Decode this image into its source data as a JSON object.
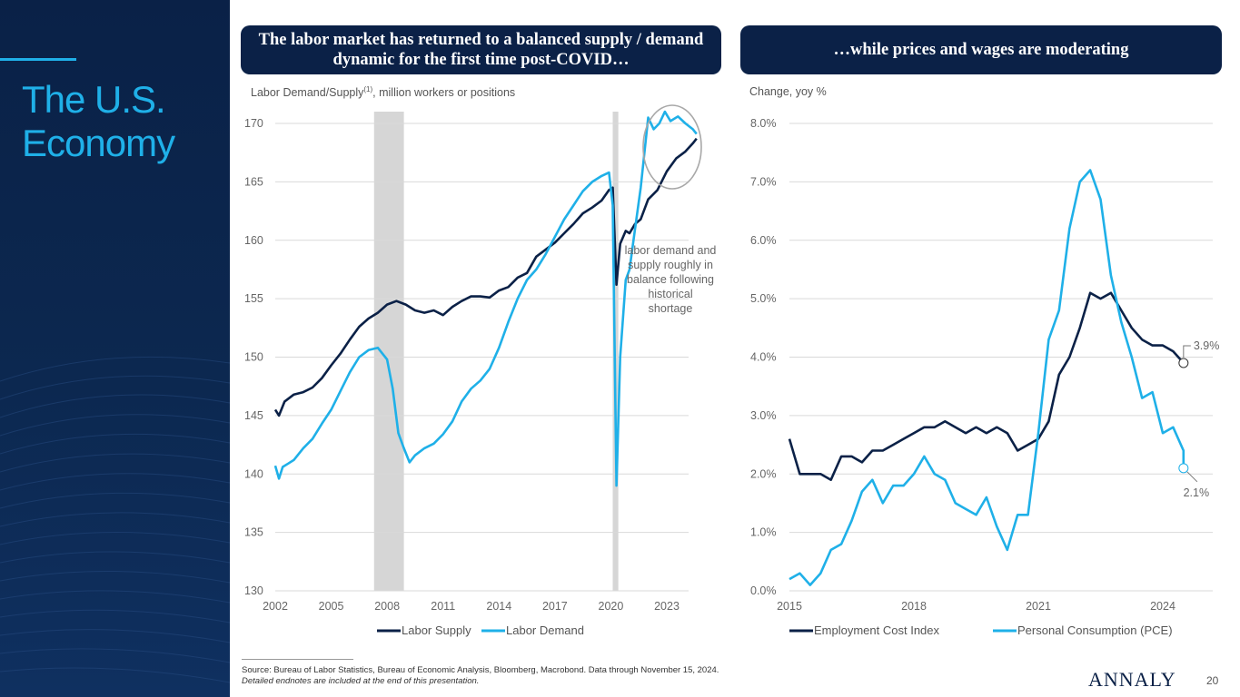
{
  "sidebar": {
    "title_line1": "The U.S.",
    "title_line2": "Economy"
  },
  "left_panel": {
    "banner": "The labor market has returned to a balanced supply / demand dynamic for the first time post-COVID…",
    "unit_label": "Labor Demand/Supply",
    "unit_sup": "(1)",
    "unit_rest": ", million workers or positions",
    "annotation": [
      "labor demand and",
      "supply roughly in",
      "balance following",
      "historical",
      "shortage"
    ]
  },
  "right_panel": {
    "banner": "…while prices and wages are moderating",
    "unit_label": "Change, yoy %"
  },
  "footer": {
    "source": "Source: Bureau of Labor Statistics, Bureau of Economic Analysis, Bloomberg, Macrobond. Data through November 15, 2024.",
    "note": "Detailed endnotes are included at the end of this presentation.",
    "logo": "ANNALY",
    "page_number": "20"
  },
  "colors": {
    "navy": "#0b2147",
    "cyan": "#1fb0e8",
    "recession": "#d6d6d6"
  },
  "chart_data": [
    {
      "type": "line",
      "ylim": [
        130,
        170
      ],
      "xlim": [
        2002,
        2024.7
      ],
      "yticks": [
        130,
        135,
        140,
        145,
        150,
        155,
        160,
        165,
        170
      ],
      "xticks": [
        "2002",
        "2005",
        "2008",
        "2011",
        "2014",
        "2017",
        "2020",
        "2023"
      ],
      "shaded_periods": [
        [
          2007.3,
          2008.9
        ],
        [
          2020.1,
          2020.4
        ]
      ],
      "series": [
        {
          "name": "Labor Supply",
          "color": "#0b2147",
          "points": [
            [
              2002.0,
              145.5
            ],
            [
              2002.2,
              145.0
            ],
            [
              2002.5,
              146.2
            ],
            [
              2003.0,
              146.8
            ],
            [
              2003.5,
              147.0
            ],
            [
              2004.0,
              147.4
            ],
            [
              2004.5,
              148.2
            ],
            [
              2005.0,
              149.3
            ],
            [
              2005.5,
              150.3
            ],
            [
              2006.0,
              151.5
            ],
            [
              2006.5,
              152.6
            ],
            [
              2007.0,
              153.3
            ],
            [
              2007.5,
              153.8
            ],
            [
              2008.0,
              154.5
            ],
            [
              2008.5,
              154.8
            ],
            [
              2009.0,
              154.5
            ],
            [
              2009.5,
              154.0
            ],
            [
              2010.0,
              153.8
            ],
            [
              2010.5,
              154.0
            ],
            [
              2011.0,
              153.6
            ],
            [
              2011.5,
              154.3
            ],
            [
              2012.0,
              154.8
            ],
            [
              2012.5,
              155.2
            ],
            [
              2013.0,
              155.2
            ],
            [
              2013.5,
              155.1
            ],
            [
              2014.0,
              155.7
            ],
            [
              2014.5,
              156.0
            ],
            [
              2015.0,
              156.8
            ],
            [
              2015.5,
              157.2
            ],
            [
              2016.0,
              158.6
            ],
            [
              2016.5,
              159.2
            ],
            [
              2017.0,
              159.8
            ],
            [
              2017.5,
              160.6
            ],
            [
              2018.0,
              161.4
            ],
            [
              2018.5,
              162.3
            ],
            [
              2019.0,
              162.8
            ],
            [
              2019.5,
              163.4
            ],
            [
              2019.9,
              164.3
            ],
            [
              2020.1,
              164.5
            ],
            [
              2020.3,
              156.2
            ],
            [
              2020.5,
              159.7
            ],
            [
              2020.8,
              160.8
            ],
            [
              2021.0,
              160.6
            ],
            [
              2021.3,
              161.4
            ],
            [
              2021.6,
              161.8
            ],
            [
              2022.0,
              163.5
            ],
            [
              2022.5,
              164.3
            ],
            [
              2023.0,
              165.9
            ],
            [
              2023.5,
              167.0
            ],
            [
              2024.0,
              167.6
            ],
            [
              2024.4,
              168.3
            ],
            [
              2024.6,
              168.7
            ]
          ]
        },
        {
          "name": "Labor Demand",
          "color": "#1fb0e8",
          "points": [
            [
              2002.0,
              140.7
            ],
            [
              2002.2,
              139.6
            ],
            [
              2002.4,
              140.6
            ],
            [
              2002.7,
              140.9
            ],
            [
              2003.0,
              141.2
            ],
            [
              2003.5,
              142.2
            ],
            [
              2004.0,
              143.0
            ],
            [
              2004.5,
              144.3
            ],
            [
              2005.0,
              145.5
            ],
            [
              2005.5,
              147.1
            ],
            [
              2006.0,
              148.7
            ],
            [
              2006.5,
              150.0
            ],
            [
              2007.0,
              150.6
            ],
            [
              2007.5,
              150.8
            ],
            [
              2008.0,
              149.8
            ],
            [
              2008.3,
              147.3
            ],
            [
              2008.6,
              143.5
            ],
            [
              2008.9,
              142.2
            ],
            [
              2009.2,
              141.0
            ],
            [
              2009.5,
              141.6
            ],
            [
              2010.0,
              142.2
            ],
            [
              2010.5,
              142.6
            ],
            [
              2011.0,
              143.4
            ],
            [
              2011.5,
              144.5
            ],
            [
              2012.0,
              146.2
            ],
            [
              2012.5,
              147.3
            ],
            [
              2013.0,
              148.0
            ],
            [
              2013.5,
              149.0
            ],
            [
              2014.0,
              150.8
            ],
            [
              2014.5,
              153.0
            ],
            [
              2015.0,
              155.0
            ],
            [
              2015.5,
              156.6
            ],
            [
              2016.0,
              157.5
            ],
            [
              2016.5,
              158.8
            ],
            [
              2017.0,
              160.3
            ],
            [
              2017.5,
              161.8
            ],
            [
              2018.0,
              163.0
            ],
            [
              2018.5,
              164.2
            ],
            [
              2019.0,
              165.0
            ],
            [
              2019.5,
              165.5
            ],
            [
              2019.9,
              165.8
            ],
            [
              2020.1,
              163.0
            ],
            [
              2020.3,
              139.0
            ],
            [
              2020.5,
              150.0
            ],
            [
              2020.8,
              156.6
            ],
            [
              2021.0,
              157.5
            ],
            [
              2021.3,
              161.0
            ],
            [
              2021.6,
              164.5
            ],
            [
              2022.0,
              170.5
            ],
            [
              2022.3,
              169.5
            ],
            [
              2022.6,
              170.0
            ],
            [
              2022.9,
              171.0
            ],
            [
              2023.2,
              170.2
            ],
            [
              2023.6,
              170.6
            ],
            [
              2024.0,
              170.0
            ],
            [
              2024.4,
              169.5
            ],
            [
              2024.6,
              169.1
            ]
          ]
        }
      ]
    },
    {
      "type": "line",
      "ylim": [
        0,
        8
      ],
      "xlim": [
        2015,
        2024.8
      ],
      "yticks": [
        "0.0%",
        "1.0%",
        "2.0%",
        "3.0%",
        "4.0%",
        "5.0%",
        "6.0%",
        "7.0%",
        "8.0%"
      ],
      "xticks": [
        "2015",
        "2018",
        "2021",
        "2024"
      ],
      "series": [
        {
          "name": "Employment Cost Index",
          "color": "#0b2147",
          "end_label": "3.9%",
          "points": [
            [
              2015.0,
              2.6
            ],
            [
              2015.25,
              2.0
            ],
            [
              2015.5,
              2.0
            ],
            [
              2015.75,
              2.0
            ],
            [
              2016.0,
              1.9
            ],
            [
              2016.25,
              2.3
            ],
            [
              2016.5,
              2.3
            ],
            [
              2016.75,
              2.2
            ],
            [
              2017.0,
              2.4
            ],
            [
              2017.25,
              2.4
            ],
            [
              2017.5,
              2.5
            ],
            [
              2017.75,
              2.6
            ],
            [
              2018.0,
              2.7
            ],
            [
              2018.25,
              2.8
            ],
            [
              2018.5,
              2.8
            ],
            [
              2018.75,
              2.9
            ],
            [
              2019.0,
              2.8
            ],
            [
              2019.25,
              2.7
            ],
            [
              2019.5,
              2.8
            ],
            [
              2019.75,
              2.7
            ],
            [
              2020.0,
              2.8
            ],
            [
              2020.25,
              2.7
            ],
            [
              2020.5,
              2.4
            ],
            [
              2020.75,
              2.5
            ],
            [
              2021.0,
              2.6
            ],
            [
              2021.25,
              2.9
            ],
            [
              2021.5,
              3.7
            ],
            [
              2021.75,
              4.0
            ],
            [
              2022.0,
              4.5
            ],
            [
              2022.25,
              5.1
            ],
            [
              2022.5,
              5.0
            ],
            [
              2022.75,
              5.1
            ],
            [
              2023.0,
              4.8
            ],
            [
              2023.25,
              4.5
            ],
            [
              2023.5,
              4.3
            ],
            [
              2023.75,
              4.2
            ],
            [
              2024.0,
              4.2
            ],
            [
              2024.25,
              4.1
            ],
            [
              2024.5,
              3.9
            ]
          ]
        },
        {
          "name": "Personal Consumption (PCE)",
          "color": "#1fb0e8",
          "end_label": "2.1%",
          "points": [
            [
              2015.0,
              0.2
            ],
            [
              2015.25,
              0.3
            ],
            [
              2015.5,
              0.1
            ],
            [
              2015.75,
              0.3
            ],
            [
              2016.0,
              0.7
            ],
            [
              2016.25,
              0.8
            ],
            [
              2016.5,
              1.2
            ],
            [
              2016.75,
              1.7
            ],
            [
              2017.0,
              1.9
            ],
            [
              2017.25,
              1.5
            ],
            [
              2017.5,
              1.8
            ],
            [
              2017.75,
              1.8
            ],
            [
              2018.0,
              2.0
            ],
            [
              2018.25,
              2.3
            ],
            [
              2018.5,
              2.0
            ],
            [
              2018.75,
              1.9
            ],
            [
              2019.0,
              1.5
            ],
            [
              2019.25,
              1.4
            ],
            [
              2019.5,
              1.3
            ],
            [
              2019.75,
              1.6
            ],
            [
              2020.0,
              1.1
            ],
            [
              2020.25,
              0.7
            ],
            [
              2020.5,
              1.3
            ],
            [
              2020.75,
              1.3
            ],
            [
              2021.0,
              2.7
            ],
            [
              2021.25,
              4.3
            ],
            [
              2021.5,
              4.8
            ],
            [
              2021.75,
              6.2
            ],
            [
              2022.0,
              7.0
            ],
            [
              2022.25,
              7.2
            ],
            [
              2022.5,
              6.7
            ],
            [
              2022.75,
              5.4
            ],
            [
              2023.0,
              4.6
            ],
            [
              2023.25,
              4.0
            ],
            [
              2023.5,
              3.3
            ],
            [
              2023.75,
              3.4
            ],
            [
              2024.0,
              2.7
            ],
            [
              2024.25,
              2.8
            ],
            [
              2024.5,
              2.4
            ],
            [
              2024.5,
              2.1
            ]
          ]
        }
      ]
    }
  ]
}
